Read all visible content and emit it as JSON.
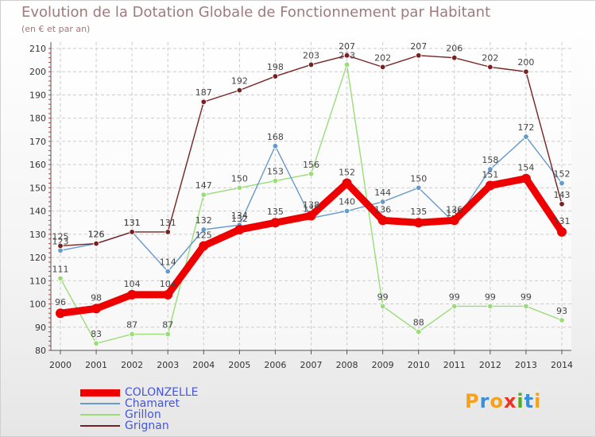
{
  "chart_data": {
    "type": "line",
    "title": "Evolution de la Dotation Globale de Fonctionnement par Habitant",
    "subtitle": "(en € et par an)",
    "categories": [
      "2000",
      "2001",
      "2002",
      "2003",
      "2004",
      "2005",
      "2006",
      "2007",
      "2008",
      "2009",
      "2010",
      "2011",
      "2012",
      "2013",
      "2014"
    ],
    "ylim": [
      80,
      210
    ],
    "yticks": [
      80,
      90,
      100,
      110,
      120,
      130,
      140,
      150,
      160,
      170,
      180,
      190,
      200,
      210
    ],
    "series": [
      {
        "name": "Grillon",
        "color": "#99dd77",
        "values": [
          111,
          83,
          87,
          87,
          147,
          150,
          153,
          156,
          203,
          99,
          88,
          99,
          99,
          99,
          93
        ]
      },
      {
        "name": "Chamaret",
        "color": "#6699cc",
        "values": [
          123,
          126,
          131,
          114,
          132,
          134,
          168,
          137,
          140,
          144,
          150,
          135,
          158,
          172,
          152
        ]
      },
      {
        "name": "Grignan",
        "color": "#772222",
        "values": [
          125,
          126,
          131,
          131,
          187,
          192,
          198,
          203,
          207,
          202,
          207,
          206,
          202,
          200,
          143
        ]
      },
      {
        "name": "COLONZELLE",
        "color": "#ee0000",
        "values": [
          96,
          98,
          104,
          104,
          125,
          132,
          135,
          138,
          152,
          136,
          135,
          136,
          151,
          154,
          131
        ]
      }
    ],
    "legend_order": [
      "COLONZELLE",
      "Chamaret",
      "Grillon",
      "Grignan"
    ]
  },
  "logo": {
    "letters": [
      "P",
      "r",
      "o",
      "x",
      "i",
      "t",
      "i"
    ],
    "colors": [
      "#f7a11a",
      "#3a8fd8",
      "#f7a11a",
      "#ee3322",
      "#55aa22",
      "#3a8fd8",
      "#f7a11a"
    ]
  }
}
